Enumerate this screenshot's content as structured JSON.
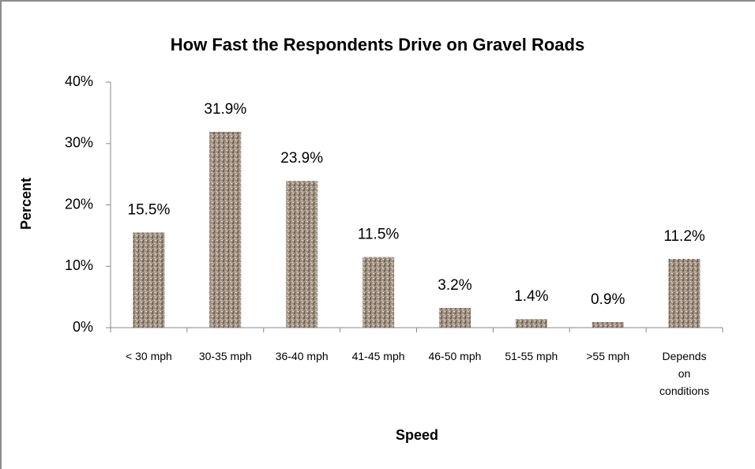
{
  "chart_data": {
    "type": "bar",
    "title": "How Fast the Respondents Drive on Gravel Roads",
    "x_label": "Speed",
    "y_label": "Percent",
    "categories": [
      "< 30 mph",
      "30-35 mph",
      "36-40 mph",
      "41-45 mph",
      "46-50 mph",
      "51-55 mph",
      ">55 mph",
      "Depends on conditions"
    ],
    "values": [
      15.5,
      31.9,
      23.9,
      11.5,
      3.2,
      1.4,
      0.9,
      11.2
    ],
    "value_labels": [
      "15.5%",
      "31.9%",
      "23.9%",
      "11.5%",
      "3.2%",
      "1.4%",
      "0.9%",
      "11.2%"
    ],
    "color": "#a39384",
    "ylim": [
      0,
      40
    ],
    "yticks": [
      {
        "value": 0,
        "label": "0%"
      },
      {
        "value": 10,
        "label": "10%"
      },
      {
        "value": 20,
        "label": "20%"
      },
      {
        "value": 30,
        "label": "30%"
      },
      {
        "value": 40,
        "label": "40%"
      }
    ],
    "grid": false
  }
}
